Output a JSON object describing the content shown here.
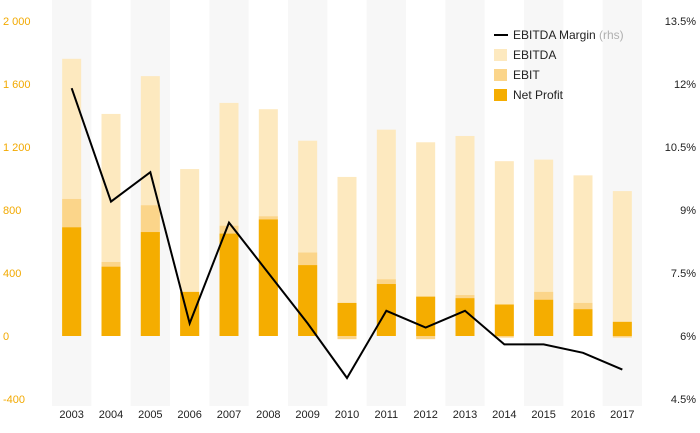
{
  "chart_data": {
    "type": "bar",
    "categories": [
      "2003",
      "2004",
      "2005",
      "2006",
      "2007",
      "2008",
      "2009",
      "2010",
      "2011",
      "2012",
      "2013",
      "2014",
      "2015",
      "2016",
      "2017"
    ],
    "series": [
      {
        "name": "EBITDA",
        "type": "bar",
        "values": [
          1760,
          1410,
          1650,
          1060,
          1480,
          1440,
          1240,
          1010,
          1310,
          1230,
          1270,
          1110,
          1120,
          1020,
          920
        ]
      },
      {
        "name": "EBIT",
        "type": "bar",
        "values": [
          870,
          470,
          830,
          280,
          700,
          760,
          530,
          -20,
          360,
          -20,
          260,
          -10,
          280,
          210,
          -10
        ]
      },
      {
        "name": "Net Profit",
        "type": "bar",
        "values": [
          690,
          440,
          660,
          280,
          650,
          740,
          450,
          210,
          330,
          250,
          240,
          200,
          230,
          170,
          90
        ]
      },
      {
        "name": "EBITDA Margin",
        "name_suffix": "(rhs)",
        "type": "line",
        "axis": "right",
        "values": [
          11.9,
          9.2,
          9.9,
          6.3,
          8.7,
          7.5,
          6.3,
          5.0,
          6.6,
          6.2,
          6.6,
          5.8,
          5.8,
          5.6,
          5.2
        ]
      }
    ],
    "yticks_left": [
      "2 000",
      "1 600",
      "1 200",
      "800",
      "400",
      "0",
      "-400"
    ],
    "ylim_left": [
      -400,
      2000
    ],
    "yticks_right": [
      "13.5%",
      "12%",
      "10.5%",
      "9%",
      "7.5%",
      "6%",
      "4.5%"
    ],
    "ylim_right": [
      4.5,
      13.5
    ],
    "title": "",
    "xlabel": "",
    "ylabel": "",
    "grid": "vertical-bands",
    "legend_position": "top-right",
    "colors": {
      "ebitda": "#fde9bf",
      "ebit": "#fbd58a",
      "net_profit": "#f5ad00",
      "margin_line": "#000000",
      "left_axis_text": "#f2a900",
      "band": "#f7f7f7"
    }
  }
}
